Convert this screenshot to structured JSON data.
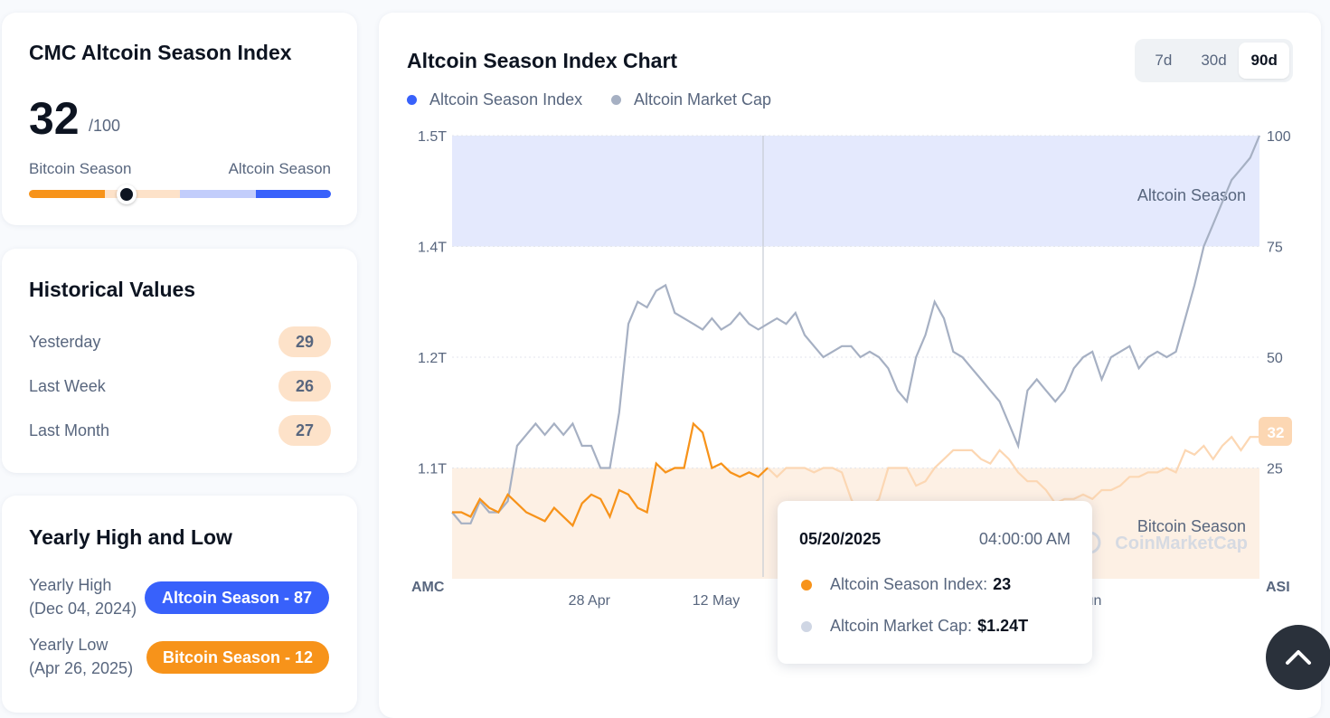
{
  "index_card": {
    "title": "CMC Altcoin Season Index",
    "value": "32",
    "max": "/100",
    "level": 0.32,
    "left_label": "Bitcoin Season",
    "right_label": "Altcoin Season",
    "colors": {
      "bitcoin": "#f7931a",
      "bitcoin_light": "#fde2c9",
      "altcoin_light": "#c2cdfb",
      "altcoin": "#3861fb"
    }
  },
  "historical": {
    "title": "Historical Values",
    "rows": [
      {
        "label": "Yesterday",
        "value": "29"
      },
      {
        "label": "Last Week",
        "value": "26"
      },
      {
        "label": "Last Month",
        "value": "27"
      }
    ]
  },
  "yearly": {
    "title": "Yearly High and Low",
    "high": {
      "label": "Yearly High",
      "date": "(Dec 04, 2024)",
      "badge": "Altcoin Season - 87",
      "color": "#3861fb"
    },
    "low": {
      "label": "Yearly Low",
      "date": "(Apr 26, 2025)",
      "badge": "Bitcoin Season - 12",
      "color": "#f7931a"
    }
  },
  "chart_panel": {
    "title": "Altcoin Season Index Chart",
    "ranges": [
      "7d",
      "30d",
      "90d"
    ],
    "active_range": "90d",
    "legend": [
      {
        "label": "Altcoin Season Index",
        "color": "#3861fb"
      },
      {
        "label": "Altcoin Market Cap",
        "color": "#a6b0c3"
      }
    ]
  },
  "chart_data": {
    "type": "line",
    "left_axis": {
      "label": "AMC",
      "ticks": [
        "1.5T",
        "1.4T",
        "1.2T",
        "1.1T"
      ]
    },
    "right_axis": {
      "label": "ASI",
      "ticks": [
        "100",
        "75",
        "50",
        "25"
      ],
      "ylim": [
        0,
        100
      ]
    },
    "x_ticks": [
      "28 Apr",
      "12 May",
      "Jun"
    ],
    "zones": [
      {
        "label": "Altcoin Season",
        "from": 75,
        "to": 100,
        "color": "#e4e9fd"
      },
      {
        "label": "Bitcoin Season",
        "from": 0,
        "to": 25,
        "color": "#fdf0e4"
      }
    ],
    "current_badge": "32",
    "watermark": "CoinMarketCap",
    "series": [
      {
        "name": "Altcoin Season Index",
        "color": "#f7931a",
        "values": [
          15,
          15,
          14,
          18,
          16,
          15,
          19,
          17,
          15,
          14,
          13,
          16,
          14,
          12,
          17,
          19,
          18,
          14,
          20,
          19,
          16,
          15,
          26,
          24,
          25,
          25,
          35,
          33,
          25,
          26,
          24,
          23,
          24,
          23,
          25,
          23,
          25,
          25,
          25,
          24,
          25,
          25,
          24,
          18,
          14,
          16,
          18,
          25,
          25,
          25,
          21,
          22,
          25,
          27,
          29,
          29,
          29,
          27,
          26,
          29,
          27,
          24,
          22,
          22,
          20,
          17,
          18,
          18,
          19,
          18,
          20,
          20,
          21,
          23,
          23,
          24,
          24,
          25,
          24,
          29,
          28,
          30,
          27,
          30,
          32,
          29,
          32,
          32
        ]
      },
      {
        "name": "Altcoin Market Cap",
        "color": "#a6b0c3",
        "values": [
          1.06,
          1.05,
          1.05,
          1.07,
          1.06,
          1.06,
          1.07,
          1.12,
          1.13,
          1.14,
          1.13,
          1.14,
          1.13,
          1.14,
          1.12,
          1.12,
          1.1,
          1.1,
          1.15,
          1.26,
          1.3,
          1.29,
          1.32,
          1.33,
          1.28,
          1.27,
          1.26,
          1.25,
          1.27,
          1.25,
          1.26,
          1.28,
          1.26,
          1.25,
          1.26,
          1.27,
          1.26,
          1.28,
          1.24,
          1.22,
          1.2,
          1.21,
          1.22,
          1.22,
          1.2,
          1.21,
          1.2,
          1.19,
          1.17,
          1.16,
          1.2,
          1.24,
          1.3,
          1.27,
          1.21,
          1.2,
          1.19,
          1.18,
          1.17,
          1.16,
          1.14,
          1.12,
          1.17,
          1.18,
          1.17,
          1.16,
          1.17,
          1.19,
          1.2,
          1.21,
          1.18,
          1.2,
          1.21,
          1.22,
          1.19,
          1.2,
          1.21,
          1.2,
          1.21,
          1.27,
          1.33,
          1.4,
          1.42,
          1.44,
          1.46,
          1.47,
          1.48,
          1.5
        ]
      }
    ]
  },
  "tooltip": {
    "date": "05/20/2025",
    "time": "04:00:00 AM",
    "rows": [
      {
        "label": "Altcoin Season Index:",
        "value": "23",
        "color": "#f7931a"
      },
      {
        "label": "Altcoin Market Cap:",
        "value": "$1.24T",
        "color": "#cfd6e4"
      }
    ]
  }
}
